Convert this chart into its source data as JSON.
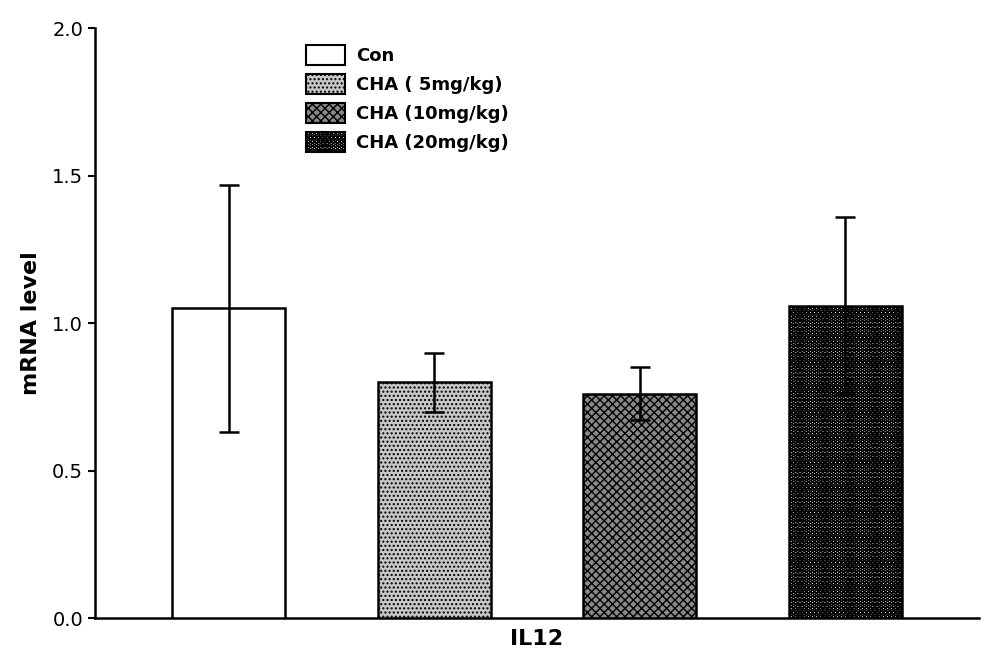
{
  "categories": [
    "Con",
    "CHA ( 5mg/kg)",
    "CHA (10mg/kg)",
    "CHA (20mg/kg)"
  ],
  "values": [
    1.05,
    0.8,
    0.76,
    1.06
  ],
  "errors": [
    0.42,
    0.1,
    0.09,
    0.3
  ],
  "xlabel": "IL12",
  "ylabel": "mRNA level",
  "ylim": [
    0.0,
    2.0
  ],
  "yticks": [
    0.0,
    0.5,
    1.0,
    1.5,
    2.0
  ],
  "bar_width": 0.55,
  "bar_positions": [
    1,
    2,
    3,
    4
  ],
  "background_color": "#ffffff",
  "legend_labels": [
    "Con",
    "CHA ( 5mg/kg)",
    "CHA (10mg/kg)",
    "CHA (20mg/kg)"
  ],
  "label_fontsize": 16,
  "tick_fontsize": 14,
  "legend_fontsize": 13
}
